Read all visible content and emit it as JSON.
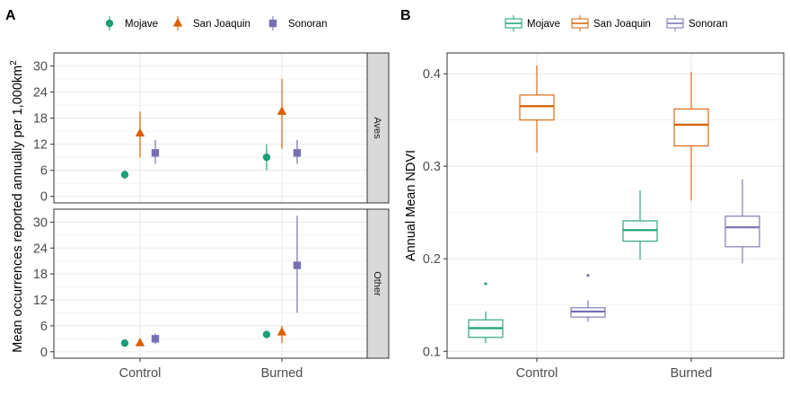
{
  "chart_data": [
    {
      "type": "scatter",
      "panel_letter": "A",
      "ylabel": "Mean occurrences reported annually per 1,000km",
      "ylabel_superscript": "2",
      "categories": [
        "Control",
        "Burned"
      ],
      "legend": {
        "position": "top",
        "entries": [
          "Mojave",
          "San Joaquin",
          "Sonoran"
        ]
      },
      "series_markers": {
        "Mojave": "circle",
        "San Joaquin": "triangle",
        "Sonoran": "square"
      },
      "facets": [
        {
          "strip": "Aves",
          "ylim": [
            -1.5,
            33
          ],
          "yticks": [
            0,
            6,
            12,
            18,
            24,
            30
          ],
          "series": [
            {
              "name": "Mojave",
              "values": [
                5,
                9
              ],
              "lower": [
                4,
                6
              ],
              "upper": [
                6,
                12
              ]
            },
            {
              "name": "San Joaquin",
              "values": [
                14.5,
                19.5
              ],
              "lower": [
                9,
                11
              ],
              "upper": [
                19.5,
                27
              ]
            },
            {
              "name": "Sonoran",
              "values": [
                10,
                10
              ],
              "lower": [
                7.5,
                7.5
              ],
              "upper": [
                13,
                13
              ]
            }
          ]
        },
        {
          "strip": "Other",
          "ylim": [
            -1.5,
            33
          ],
          "yticks": [
            0,
            6,
            12,
            18,
            24,
            30
          ],
          "series": [
            {
              "name": "Mojave",
              "values": [
                2,
                4
              ],
              "lower": [
                1.5,
                3.3
              ],
              "upper": [
                2.5,
                4.7
              ]
            },
            {
              "name": "San Joaquin",
              "values": [
                2,
                4.5
              ],
              "lower": [
                1.4,
                2
              ],
              "upper": [
                2.6,
                6
              ]
            },
            {
              "name": "Sonoran",
              "values": [
                3,
                20
              ],
              "lower": [
                1.8,
                9
              ],
              "upper": [
                4.2,
                31.5
              ]
            }
          ]
        }
      ]
    },
    {
      "type": "box",
      "panel_letter": "B",
      "ylabel": "Annual Mean NDVI",
      "categories": [
        "Control",
        "Burned"
      ],
      "ylim": [
        0.0925,
        0.4225
      ],
      "yticks": [
        0.1,
        0.2,
        0.3,
        0.4
      ],
      "legend": {
        "position": "top",
        "entries": [
          "Mojave",
          "San Joaquin",
          "Sonoran"
        ]
      },
      "series": [
        {
          "name": "Mojave",
          "boxes": [
            {
              "min": 0.109,
              "q1": 0.115,
              "median": 0.125,
              "q3": 0.134,
              "max": 0.143,
              "outliers": [
                0.173
              ]
            },
            {
              "min": 0.199,
              "q1": 0.219,
              "median": 0.231,
              "q3": 0.241,
              "max": 0.274,
              "outliers": []
            }
          ]
        },
        {
          "name": "San Joaquin",
          "boxes": [
            {
              "min": 0.315,
              "q1": 0.35,
              "median": 0.365,
              "q3": 0.377,
              "max": 0.409,
              "outliers": []
            },
            {
              "min": 0.263,
              "q1": 0.322,
              "median": 0.345,
              "q3": 0.362,
              "max": 0.402,
              "outliers": []
            }
          ]
        },
        {
          "name": "Sonoran",
          "boxes": [
            {
              "min": 0.132,
              "q1": 0.137,
              "median": 0.143,
              "q3": 0.147,
              "max": 0.155,
              "outliers": [
                0.182
              ]
            },
            {
              "min": 0.195,
              "q1": 0.213,
              "median": 0.234,
              "q3": 0.246,
              "max": 0.286,
              "outliers": []
            }
          ]
        }
      ]
    }
  ],
  "colors": {
    "Mojave": "#1b9e77",
    "San Joaquin": "#d95f02",
    "Sonoran": "#7570b3"
  }
}
